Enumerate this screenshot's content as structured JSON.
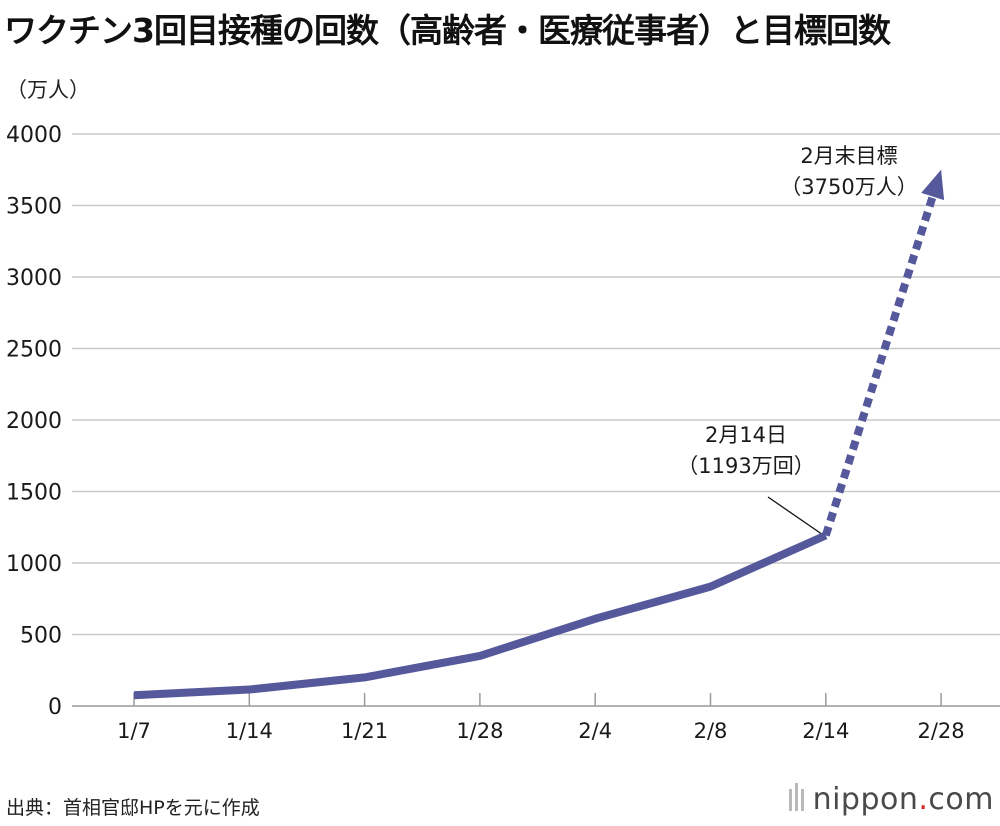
{
  "title": "ワクチン3回目接種の回数（高齢者・医療従事者）と目標回数",
  "unit_label": "（万人）",
  "source": "出典：首相官邸HPを元に作成",
  "brand": {
    "name": "nippon",
    "dot": ".",
    "tld": "com"
  },
  "colors": {
    "line": "#55589a",
    "grid": "#c8c8c8"
  },
  "chart_data": {
    "type": "line",
    "title": "ワクチン3回目接種の回数（高齢者・医療従事者）と目標回数",
    "ylabel": "（万人）",
    "xlabel": "",
    "categories": [
      "1/7",
      "1/14",
      "1/21",
      "1/28",
      "2/4",
      "2/8",
      "2/14",
      "2/28"
    ],
    "series": [
      {
        "values": [
          75,
          115,
          200,
          350,
          610,
          835,
          1193,
          null
        ],
        "style": "solid"
      },
      {
        "values": [
          null,
          null,
          null,
          null,
          null,
          null,
          1193,
          3750
        ],
        "style": "dashed-arrow"
      }
    ],
    "ylim": [
      0,
      4000
    ],
    "yticks": [
      0,
      500,
      1000,
      1500,
      2000,
      2500,
      3000,
      3500,
      4000
    ],
    "grid": true,
    "annotations": [
      {
        "lines": [
          "2月14日",
          "（1193万回）"
        ],
        "category": "2/14",
        "value": 1193
      },
      {
        "lines": [
          "2月末目標",
          "（3750万人）"
        ],
        "category": "2/28",
        "value": 3750
      }
    ]
  }
}
